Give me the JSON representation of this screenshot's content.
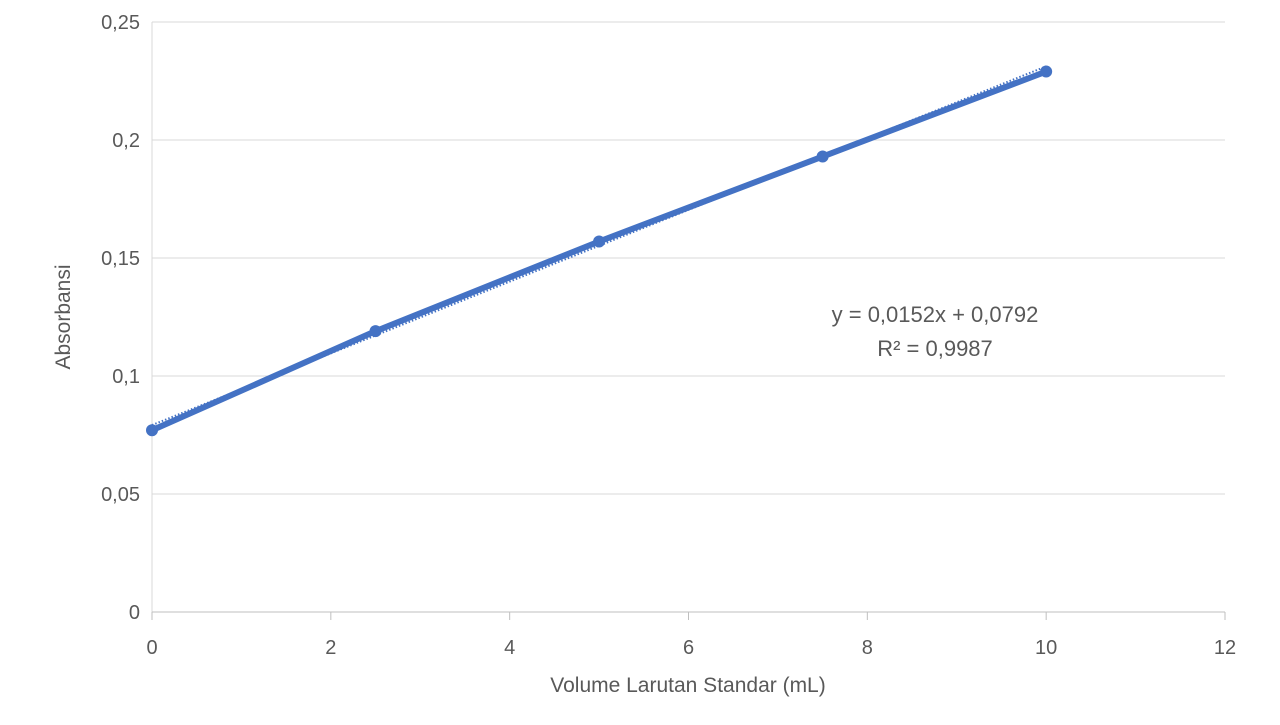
{
  "chart_data": {
    "type": "scatter",
    "title": "",
    "xlabel": "Volume Larutan Standar (mL)",
    "ylabel": "Absorbansi",
    "xlim": [
      0,
      12
    ],
    "ylim": [
      0,
      0.25
    ],
    "x_ticks": [
      0,
      2,
      4,
      6,
      8,
      10,
      12
    ],
    "x_tick_labels": [
      "0",
      "2",
      "4",
      "6",
      "8",
      "10",
      "12"
    ],
    "y_ticks": [
      0,
      0.05,
      0.1,
      0.15,
      0.2,
      0.25
    ],
    "y_tick_labels": [
      "0",
      "0,05",
      "0,1",
      "0,15",
      "0,2",
      "0,25"
    ],
    "grid": "horizontal",
    "series": [
      {
        "x": [
          0,
          2.5,
          5,
          7.5,
          10
        ],
        "y": [
          0.077,
          0.119,
          0.157,
          0.193,
          0.229
        ],
        "color": "#4472C4",
        "style": "line-with-markers"
      }
    ],
    "trendline": {
      "type": "linear",
      "slope": 0.0152,
      "intercept": 0.0792,
      "x_range": [
        0,
        10
      ],
      "style": "dotted",
      "color": "#4472C4",
      "equation_label": "y = 0,0152x + 0,0792",
      "r2_label": "R² = 0,9987"
    }
  }
}
